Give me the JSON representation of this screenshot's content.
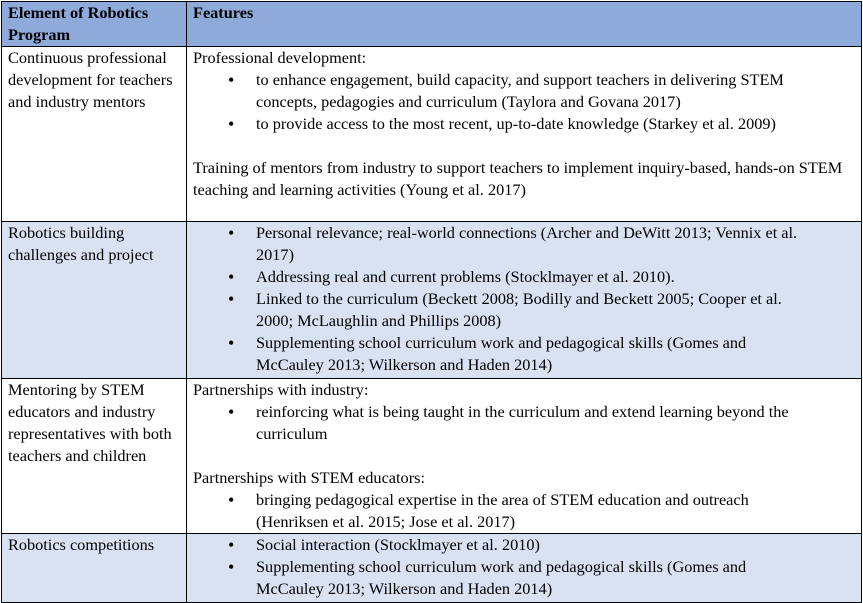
{
  "table": {
    "headers": [
      "Element of Robotics Program",
      "Features"
    ],
    "rows": [
      {
        "element": "Continuous professional development for teachers and industry mentors",
        "blocks": [
          {
            "text": "Professional development:",
            "bullets": [
              "to enhance engagement, build capacity, and support teachers in delivering STEM concepts, pedagogies and curriculum (Taylora and Govana 2017)",
              "to provide access to the most recent, up-to-date knowledge (Starkey et al. 2009)"
            ]
          },
          {
            "text": "Training of mentors from industry to support teachers to implement inquiry-based, hands-on STEM teaching and learning activities (Young et al. 2017)",
            "bullets": []
          }
        ]
      },
      {
        "element": "Robotics building challenges and project",
        "blocks": [
          {
            "text": "",
            "bullets": [
              "Personal relevance; real-world connections (Archer and DeWitt 2013; Vennix et al. 2017)",
              "Addressing real and current problems (Stocklmayer et al. 2010).",
              "Linked to the curriculum (Beckett 2008; Bodilly and Beckett 2005; Cooper et al. 2000; McLaughlin and Phillips 2008)",
              "Supplementing school curriculum work and pedagogical skills (Gomes and McCauley 2013; Wilkerson and Haden 2014)"
            ]
          }
        ]
      },
      {
        "element": "Mentoring by STEM educators and industry representatives with both teachers and children",
        "blocks": [
          {
            "text": "Partnerships with industry:",
            "bullets": [
              "reinforcing what is being taught in the curriculum and extend learning beyond the curriculum"
            ]
          },
          {
            "text": "Partnerships with STEM educators:",
            "bullets": [
              "bringing pedagogical expertise in the area of STEM education and outreach (Henriksen et al. 2015; Jose et al. 2017)"
            ]
          }
        ]
      },
      {
        "element": "Robotics competitions",
        "blocks": [
          {
            "text": "",
            "bullets": [
              "Social interaction (Stocklmayer et al. 2010)",
              "Supplementing school curriculum work and pedagogical skills (Gomes and McCauley 2013; Wilkerson and Haden 2014)"
            ]
          }
        ]
      }
    ]
  },
  "colors": {
    "header_bg": "#8eaadb",
    "alt_row_bg": "#d9e2f3"
  }
}
